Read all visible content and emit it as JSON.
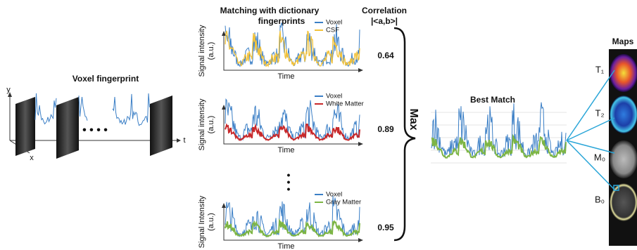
{
  "voxel_fingerprint": {
    "title": "Voxel fingerprint",
    "axes": {
      "y": "y",
      "t": "t",
      "x": "x"
    }
  },
  "matching": {
    "title": "Matching with dictionary",
    "title_line2": "fingerprints",
    "correlation_title": "Correlation",
    "correlation_formula": "|<a,b>|",
    "selector": "Max",
    "panels": [
      {
        "y_label": "Signal intensity",
        "y_unit": "(a.u.)",
        "x_label": "Time",
        "legend": [
          "Voxel",
          "CSF"
        ],
        "correlation": "0.64"
      },
      {
        "y_label": "Signal intensity",
        "y_unit": "(a.u.)",
        "x_label": "Time",
        "legend": [
          "Voxel",
          "White Matter"
        ],
        "correlation": "0.89"
      },
      {
        "y_label": "Signal Intensity",
        "y_unit": "(a.u.)",
        "x_label": "Time",
        "legend": [
          "Voxel",
          "Gray Matter"
        ],
        "correlation": "0.95"
      }
    ]
  },
  "best_match": {
    "title": "Best Match"
  },
  "maps": {
    "title": "Maps",
    "labels": [
      "T₁",
      "T₂",
      "M₀",
      "B₀"
    ]
  }
}
